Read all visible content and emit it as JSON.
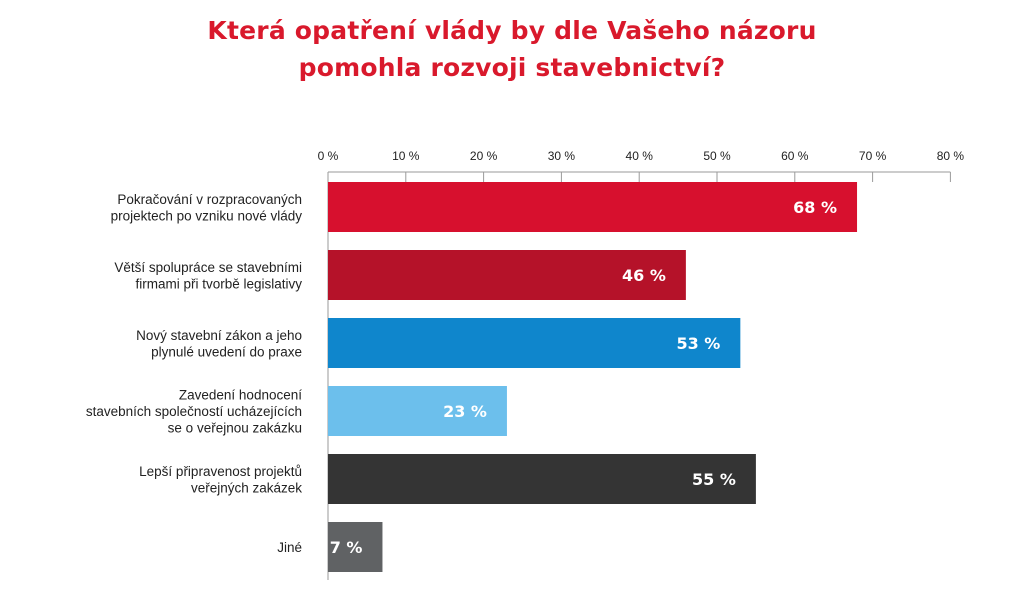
{
  "title_lines": [
    "Která opatření vlády by dle Vašeho názoru",
    "pomohla rozvoji stavebnictví?"
  ],
  "colors": {
    "title": "#d9192c",
    "axis": "#9a9a9a",
    "text": "#222222"
  },
  "chart_data": {
    "type": "bar",
    "orientation": "horizontal",
    "title": "Která opatření vlády by dle Vašeho názoru pomohla rozvoji stavebnictví?",
    "xlim": [
      0,
      80
    ],
    "x_ticks": [
      0,
      10,
      20,
      30,
      40,
      50,
      60,
      70,
      80
    ],
    "tick_labels": [
      "0 %",
      "10 %",
      "20 %",
      "30 %",
      "40 %",
      "50 %",
      "60 %",
      "70 %",
      "80 %"
    ],
    "x_axis_position": "top",
    "grid": false,
    "categories": [
      {
        "lines": [
          "Pokračování v rozpracovaných",
          "projektech po vzniku nové vlády"
        ],
        "value": 68,
        "label": "68 %",
        "color": "#d7102e"
      },
      {
        "lines": [
          "Větší spolupráce se stavebními",
          "firmami při tvorbě legislativy"
        ],
        "value": 46,
        "label": "46 %",
        "color": "#b51229"
      },
      {
        "lines": [
          "Nový stavební zákon a jeho",
          "plynulé uvedení do praxe"
        ],
        "value": 53,
        "label": "53 %",
        "color": "#0f86cc"
      },
      {
        "lines": [
          "Zavedení hodnocení",
          "stavebních společností ucházejících",
          "se o veřejnou zakázku"
        ],
        "value": 23,
        "label": "23 %",
        "color": "#6cbfec"
      },
      {
        "lines": [
          "Lepší připravenost projektů",
          "veřejných zakázek"
        ],
        "value": 55,
        "label": "55 %",
        "color": "#343434"
      },
      {
        "lines": [
          "Jiné"
        ],
        "value": 7,
        "label": "7 %",
        "color": "#606264"
      }
    ]
  }
}
